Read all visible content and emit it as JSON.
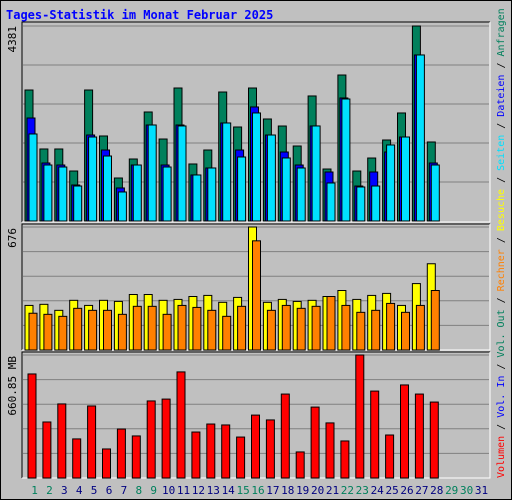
{
  "chart_data": [
    {
      "type": "bar",
      "title": "Tages-Statistik im Monat Februar 2025",
      "ylim": [
        0,
        4381
      ],
      "yticks": [
        4381
      ],
      "series": [
        {
          "name": "Anfragen",
          "color": "#00805c",
          "values": [
            2943,
            1618,
            1618,
            1123,
            2943,
            1910,
            966,
            1393,
            2449,
            1842,
            2988,
            1281,
            1595,
            2898,
            2112,
            2988,
            2292,
            2134,
            1685,
            2809,
            1168,
            3280,
            1123,
            1415,
            1820,
            2427,
            4381,
            1775,
            null,
            null,
            null
          ]
        },
        {
          "name": "Dateien",
          "color": "#0000ff",
          "values": [
            2314,
            1303,
            1258,
            809,
            1932,
            1595,
            742,
            1258,
            2157,
            1258,
            2157,
            1034,
            1191,
            2202,
            1595,
            2562,
            1932,
            1550,
            1258,
            2135,
            1101,
            2764,
            786,
            1101,
            1550,
            1887,
            3730,
            1303,
            null,
            null,
            null
          ]
        },
        {
          "name": "Seiten",
          "color": "#00e0ff",
          "values": [
            1955,
            1258,
            1213,
            786,
            1887,
            1460,
            652,
            1258,
            2157,
            1213,
            2135,
            1034,
            1191,
            2202,
            1438,
            2427,
            1932,
            1416,
            1191,
            2135,
            854,
            2741,
            764,
            786,
            1708,
            1887,
            3730,
            1258,
            null,
            null,
            null
          ]
        }
      ]
    },
    {
      "type": "bar",
      "ylim": [
        0,
        676
      ],
      "yticks": [
        676
      ],
      "series": [
        {
          "name": "Besuche",
          "color": "#ffff00",
          "values": [
            245,
            251,
            218,
            273,
            245,
            273,
            267,
            305,
            305,
            273,
            278,
            294,
            300,
            262,
            289,
            676,
            262,
            278,
            267,
            273,
            294,
            327,
            278,
            300,
            311,
            245,
            365,
            474,
            null,
            null,
            null
          ]
        },
        {
          "name": "Rechner",
          "color": "#ff8000",
          "values": [
            202,
            196,
            185,
            229,
            218,
            218,
            196,
            240,
            240,
            196,
            245,
            234,
            218,
            185,
            240,
            600,
            218,
            245,
            229,
            240,
            294,
            245,
            207,
            218,
            256,
            207,
            245,
            327,
            null,
            null,
            null
          ]
        }
      ]
    },
    {
      "type": "bar",
      "ylim": [
        0,
        660.85
      ],
      "yticks": [
        {
          "value": 660.85,
          "label": "660.85 MB"
        }
      ],
      "legend_separator": " / ",
      "categories": [
        "1",
        "2",
        "3",
        "4",
        "5",
        "6",
        "7",
        "8",
        "9",
        "10",
        "11",
        "12",
        "13",
        "14",
        "15",
        "16",
        "17",
        "18",
        "19",
        "20",
        "21",
        "22",
        "23",
        "24",
        "25",
        "26",
        "27",
        "28",
        "29",
        "30",
        "31"
      ],
      "category_colors": [
        "#00805c",
        "#00805c",
        "#000080",
        "#000080",
        "#000080",
        "#000080",
        "#000080",
        "#00805c",
        "#00805c",
        "#000080",
        "#000080",
        "#000080",
        "#000080",
        "#000080",
        "#00805c",
        "#00805c",
        "#000080",
        "#000080",
        "#000080",
        "#000080",
        "#000080",
        "#00805c",
        "#00805c",
        "#000080",
        "#000080",
        "#000080",
        "#000080",
        "#000080",
        "#00805c",
        "#00805c",
        "#000080"
      ],
      "series": [
        {
          "name": "Vol. Out",
          "color": "#00805c",
          "values": [
            null,
            null,
            null,
            null,
            null,
            null,
            null,
            null,
            null,
            null,
            null,
            null,
            null,
            null,
            null,
            null,
            null,
            null,
            null,
            null,
            null,
            null,
            null,
            null,
            null,
            null,
            null,
            null,
            null,
            null,
            null
          ]
        },
        {
          "name": "Vol. In",
          "color": "#0000ff",
          "values": [
            null,
            null,
            null,
            null,
            null,
            null,
            null,
            null,
            null,
            null,
            null,
            null,
            null,
            null,
            null,
            null,
            null,
            null,
            null,
            null,
            null,
            null,
            null,
            null,
            null,
            null,
            null,
            null,
            null,
            null,
            null
          ]
        },
        {
          "name": "Volumen",
          "color": "#ff0000",
          "values": [
            559,
            301,
            398,
            210,
            387,
            156,
            263,
            226,
            414,
            424,
            570,
            247,
            290,
            285,
            220,
            338,
            312,
            451,
            140,
            381,
            296,
            199,
            660.85,
            467,
            231,
            500,
            451,
            408,
            null,
            null,
            null
          ]
        }
      ]
    }
  ]
}
